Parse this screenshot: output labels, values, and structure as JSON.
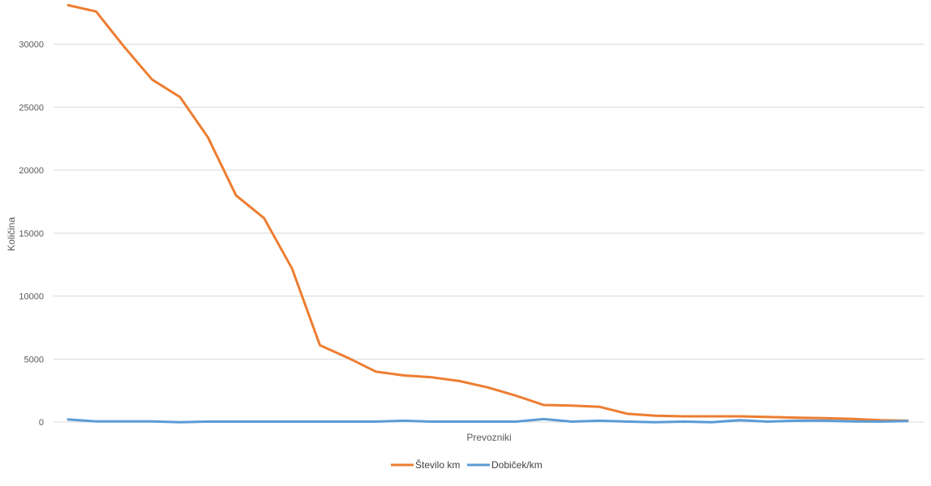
{
  "chart_data": {
    "type": "line",
    "title": "",
    "xlabel": "Prevozniki",
    "ylabel": "Količina",
    "ylim": [
      0,
      33000
    ],
    "yticks": [
      0,
      5000,
      10000,
      15000,
      20000,
      25000,
      30000
    ],
    "grid": true,
    "legend_position": "bottom",
    "x_count": 31,
    "series": [
      {
        "name": "Število km",
        "color": "#ED7D31",
        "values": [
          33100,
          32600,
          29800,
          27200,
          25800,
          22600,
          18000,
          16200,
          12200,
          6100,
          5100,
          4000,
          3700,
          3550,
          3250,
          2750,
          2100,
          1350,
          1300,
          1200,
          650,
          500,
          450,
          450,
          450,
          400,
          350,
          300,
          250,
          150,
          100
        ]
      },
      {
        "name": "Dobiček/km",
        "color": "#5B9BD5",
        "values": [
          200,
          50,
          50,
          50,
          -20,
          30,
          30,
          30,
          30,
          30,
          30,
          30,
          100,
          30,
          30,
          30,
          30,
          230,
          30,
          100,
          30,
          -20,
          30,
          -20,
          150,
          30,
          100,
          100,
          50,
          30,
          80
        ]
      }
    ]
  }
}
